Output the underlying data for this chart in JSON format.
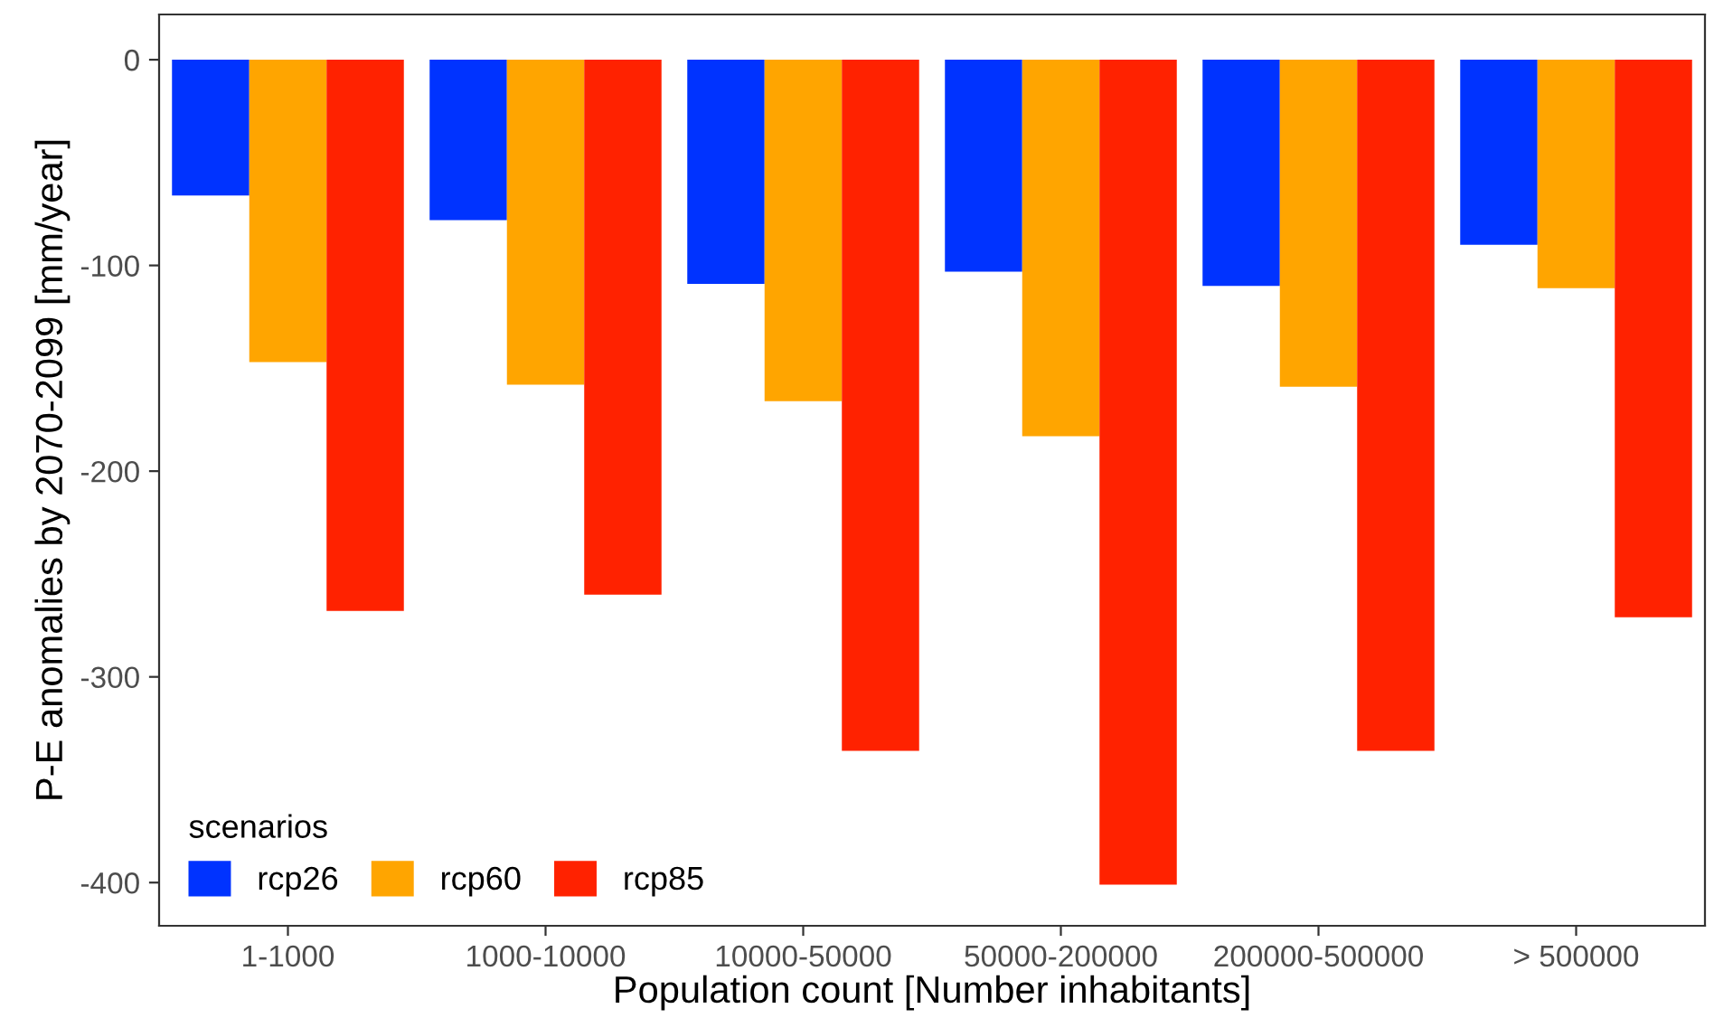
{
  "chart_data": {
    "type": "bar",
    "categories": [
      "1-1000",
      "1000-10000",
      "10000-50000",
      "50000-200000",
      "200000-500000",
      "> 500000"
    ],
    "series": [
      {
        "name": "rcp26",
        "color": "#0033ff",
        "values": [
          -66,
          -78,
          -109,
          -103,
          -110,
          -90
        ]
      },
      {
        "name": "rcp60",
        "color": "#ffa500",
        "values": [
          -147,
          -158,
          -166,
          -183,
          -159,
          -111
        ]
      },
      {
        "name": "rcp85",
        "color": "#ff2200",
        "values": [
          -268,
          -260,
          -336,
          -401,
          -336,
          -271
        ]
      }
    ],
    "xlabel": "Population count [Number inhabitants]",
    "ylabel": "P-E anomalies by 2070-2099 [mm/year]",
    "legend_title": "scenarios",
    "legend": "bottom left",
    "ylim": [
      -421,
      22
    ],
    "yticks": [
      0,
      -100,
      -200,
      -300,
      -400
    ],
    "grid": false
  }
}
